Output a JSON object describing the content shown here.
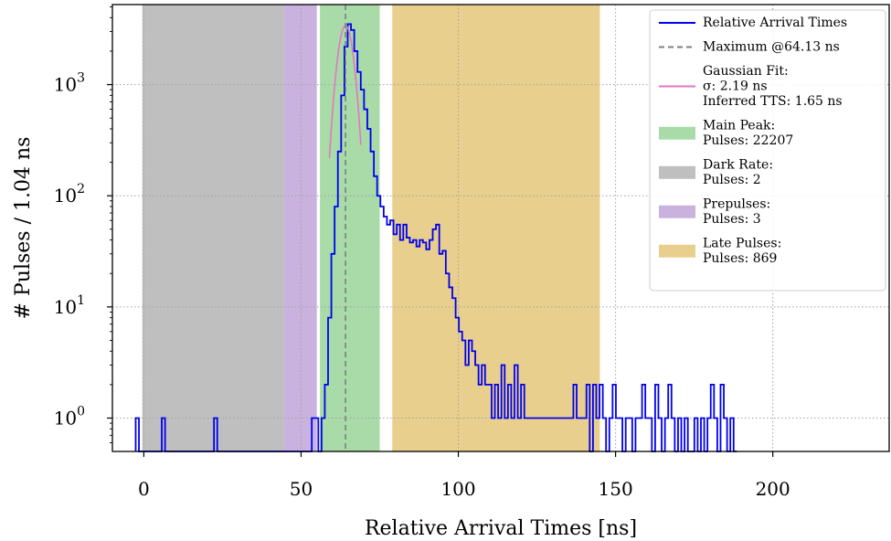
{
  "chart_data": {
    "type": "line",
    "xlabel": "Relative Arrival Times [ns]",
    "ylabel": "# Pulses / 1.04 ns",
    "xlim": [
      -10,
      237
    ],
    "ylim_log10": [
      -0.3,
      3.72
    ],
    "y_scale": "log",
    "grid": true,
    "x_ticks": [
      0,
      50,
      100,
      150,
      200
    ],
    "y_ticks": [
      {
        "value": 1,
        "base": "10",
        "exp": "0"
      },
      {
        "value": 10,
        "base": "10",
        "exp": "1"
      },
      {
        "value": 100,
        "base": "10",
        "exp": "2"
      },
      {
        "value": 1000,
        "base": "10",
        "exp": "3"
      }
    ],
    "regions": [
      {
        "name": "dark_rate",
        "x0": -0.5,
        "x1": 44.5,
        "color": "#bfbfbf"
      },
      {
        "name": "prepulses",
        "x0": 44.5,
        "x1": 55.0,
        "color": "#c9b3de"
      },
      {
        "name": "main_peak",
        "x0": 56.0,
        "x1": 75.0,
        "color": "#a8dba8"
      },
      {
        "name": "late_pulses",
        "x0": 79.0,
        "x1": 145.0,
        "color": "#e8cf8d"
      }
    ],
    "max_line_x": 64.13,
    "series": [
      {
        "name": "Relative Arrival Times",
        "color": "#0000ee",
        "bin_width": 1.04,
        "steps": [
          [
            -2.6,
            1
          ],
          [
            -1.56,
            0.5
          ],
          [
            5.7,
            1
          ],
          [
            6.74,
            0.5
          ],
          [
            22.3,
            1
          ],
          [
            23.34,
            0.5
          ],
          [
            53.4,
            1
          ],
          [
            55.48,
            0.5
          ],
          [
            56.5,
            1
          ],
          [
            57.54,
            2
          ],
          [
            58.58,
            8
          ],
          [
            59.62,
            30
          ],
          [
            60.66,
            80
          ],
          [
            61.7,
            250
          ],
          [
            62.74,
            800
          ],
          [
            63.78,
            2200
          ],
          [
            64.82,
            3500
          ],
          [
            65.86,
            3100
          ],
          [
            66.9,
            2000
          ],
          [
            67.94,
            1300
          ],
          [
            68.98,
            900
          ],
          [
            70.02,
            600
          ],
          [
            71.06,
            400
          ],
          [
            72.1,
            250
          ],
          [
            73.14,
            150
          ],
          [
            74.18,
            100
          ],
          [
            75.22,
            80
          ],
          [
            76.26,
            65
          ],
          [
            77.3,
            55
          ],
          [
            78.34,
            60
          ],
          [
            79.38,
            45
          ],
          [
            80.42,
            55
          ],
          [
            81.46,
            40
          ],
          [
            82.5,
            55
          ],
          [
            83.54,
            42
          ],
          [
            84.58,
            38
          ],
          [
            85.62,
            40
          ],
          [
            86.66,
            35
          ],
          [
            87.7,
            40
          ],
          [
            88.74,
            38
          ],
          [
            89.78,
            33
          ],
          [
            90.82,
            40
          ],
          [
            91.86,
            50
          ],
          [
            92.9,
            55
          ],
          [
            93.94,
            30
          ],
          [
            94.98,
            32
          ],
          [
            96.02,
            20
          ],
          [
            97.06,
            15
          ],
          [
            98.1,
            12
          ],
          [
            99.14,
            8
          ],
          [
            100.18,
            6
          ],
          [
            101.22,
            5
          ],
          [
            102.26,
            3
          ],
          [
            103.3,
            5
          ],
          [
            104.34,
            4
          ],
          [
            105.38,
            3
          ],
          [
            106.42,
            2
          ],
          [
            107.46,
            3
          ],
          [
            108.5,
            2
          ],
          [
            109.54,
            2
          ],
          [
            110.58,
            1
          ],
          [
            111.62,
            2
          ],
          [
            112.66,
            1
          ],
          [
            113.7,
            3
          ],
          [
            114.74,
            1
          ],
          [
            115.78,
            2
          ],
          [
            116.82,
            1
          ],
          [
            117.86,
            3
          ],
          [
            118.9,
            1
          ],
          [
            119.94,
            2
          ],
          [
            120.98,
            1
          ],
          [
            122.02,
            1
          ],
          [
            123.06,
            1
          ],
          [
            124.1,
            1
          ],
          [
            125.14,
            1
          ],
          [
            126.18,
            1
          ],
          [
            127.22,
            1
          ],
          [
            128.26,
            1
          ],
          [
            129.3,
            1
          ],
          [
            130.34,
            1
          ],
          [
            131.38,
            1
          ],
          [
            132.42,
            1
          ],
          [
            133.46,
            1
          ],
          [
            134.5,
            1
          ],
          [
            135.54,
            1
          ],
          [
            136.58,
            2
          ],
          [
            137.62,
            1
          ],
          [
            138.66,
            1
          ],
          [
            139.7,
            1
          ],
          [
            140.74,
            2
          ],
          [
            141.78,
            0.5
          ],
          [
            142.82,
            2
          ],
          [
            143.86,
            1
          ],
          [
            144.9,
            2
          ],
          [
            145.94,
            1
          ],
          [
            146.98,
            0.5
          ],
          [
            148.02,
            1
          ],
          [
            149.06,
            2
          ],
          [
            150.1,
            1
          ],
          [
            151.14,
            1
          ],
          [
            152.18,
            0.5
          ],
          [
            153.22,
            1
          ],
          [
            154.26,
            1
          ],
          [
            155.3,
            0.5
          ],
          [
            156.34,
            1
          ],
          [
            157.38,
            1
          ],
          [
            158.42,
            2
          ],
          [
            159.46,
            1
          ],
          [
            160.5,
            1
          ],
          [
            161.54,
            0.5
          ],
          [
            162.58,
            2
          ],
          [
            163.62,
            1
          ],
          [
            164.66,
            0.5
          ],
          [
            165.7,
            1
          ],
          [
            166.74,
            2
          ],
          [
            167.78,
            1
          ],
          [
            168.82,
            0.5
          ],
          [
            169.86,
            1
          ],
          [
            170.9,
            0.5
          ],
          [
            171.94,
            1
          ],
          [
            172.98,
            0.5
          ],
          [
            174.02,
            0.5
          ],
          [
            175.06,
            1
          ],
          [
            176.1,
            0.5
          ],
          [
            177.14,
            1
          ],
          [
            178.18,
            0.5
          ],
          [
            179.22,
            1
          ],
          [
            180.26,
            2
          ],
          [
            181.3,
            1
          ],
          [
            182.34,
            0.5
          ],
          [
            183.38,
            2
          ],
          [
            184.42,
            1
          ],
          [
            185.46,
            0.5
          ],
          [
            186.5,
            1
          ],
          [
            187.54,
            0.5
          ]
        ]
      },
      {
        "name": "Gaussian Fit",
        "color": "#e377c2",
        "mu": 64.13,
        "sigma": 2.19,
        "amplitude": 3400,
        "x_range": [
          59.0,
          69.0
        ]
      }
    ],
    "legend": {
      "placement": "top-right",
      "entries": [
        {
          "key": "hist",
          "lines": [
            "Relative Arrival Times"
          ]
        },
        {
          "key": "max",
          "lines": [
            "Maximum @64.13 ns"
          ]
        },
        {
          "key": "fit",
          "lines": [
            "Gaussian Fit:",
            "σ: 2.19 ns",
            "Inferred TTS: 1.65 ns"
          ]
        },
        {
          "key": "main",
          "lines": [
            "Main Peak:",
            "Pulses: 22207"
          ]
        },
        {
          "key": "dark",
          "lines": [
            "Dark Rate:",
            "Pulses: 2"
          ]
        },
        {
          "key": "pre",
          "lines": [
            "Prepulses:",
            "Pulses: 3"
          ]
        },
        {
          "key": "late",
          "lines": [
            "Late Pulses:",
            "Pulses: 869"
          ]
        }
      ]
    },
    "colors": {
      "max_line": "#7f7f7f",
      "grid": "#a0a0a0"
    }
  }
}
